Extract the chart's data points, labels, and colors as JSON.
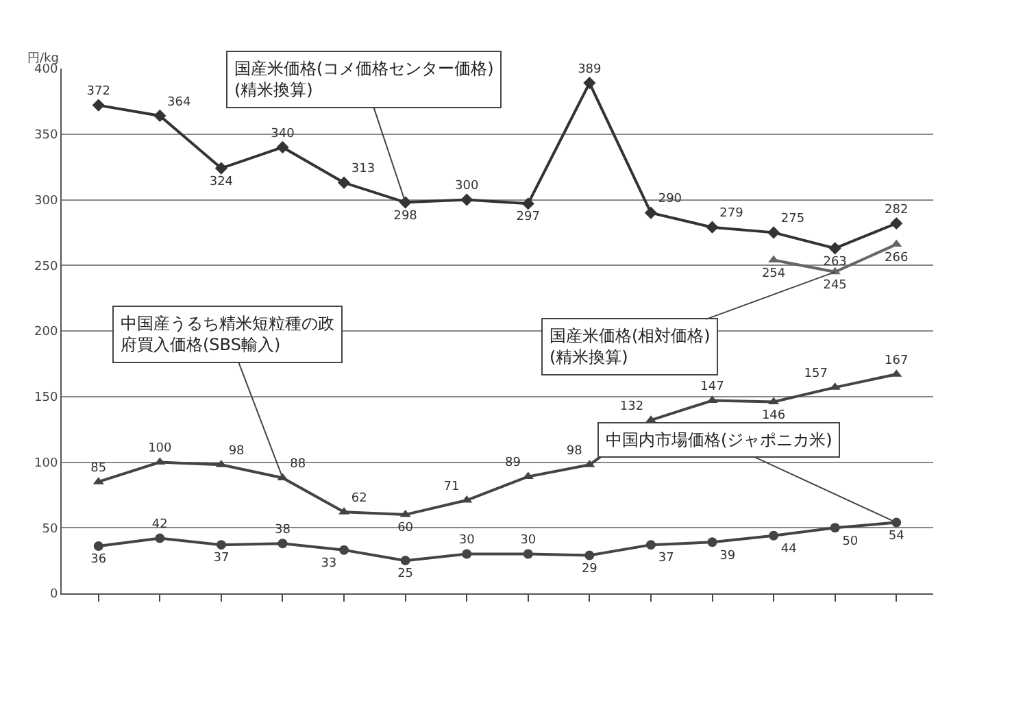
{
  "chart_data": {
    "type": "line",
    "ylabel": "円/kg",
    "categories": [
      null,
      null,
      null,
      null,
      null,
      null,
      null,
      null,
      null,
      null,
      null,
      null,
      null,
      null
    ],
    "ylim": [
      0,
      400
    ],
    "yticks": [
      0,
      50,
      100,
      150,
      200,
      250,
      300,
      350,
      400
    ],
    "grid": "y",
    "legend": false,
    "data_labels": true,
    "series": [
      {
        "name": "国産米価格(コメ価格センター価格)\n(精米換算)",
        "color": "#333333",
        "marker": "diamond",
        "values": [
          372,
          364,
          324,
          340,
          313,
          298,
          300,
          297,
          389,
          290,
          279,
          275,
          263,
          282
        ]
      },
      {
        "name": "国産米価格(相対価格)\n(精米換算)",
        "color": "#666666",
        "marker": "triangle",
        "values": [
          null,
          null,
          null,
          null,
          null,
          null,
          null,
          null,
          null,
          null,
          null,
          254,
          245,
          266
        ]
      },
      {
        "name": "中国産うるち精米短粒種の政府買入価格(SBS輸入)",
        "color": "#444444",
        "marker": "triangle",
        "values": [
          85,
          100,
          98,
          88,
          62,
          60,
          71,
          89,
          98,
          132,
          147,
          146,
          157,
          167
        ]
      },
      {
        "name": "中国内市場価格(ジャポニカ米)",
        "color": "#444444",
        "marker": "circle",
        "values": [
          36,
          42,
          37,
          38,
          33,
          25,
          30,
          30,
          29,
          37,
          39,
          44,
          50,
          54
        ]
      }
    ]
  }
}
